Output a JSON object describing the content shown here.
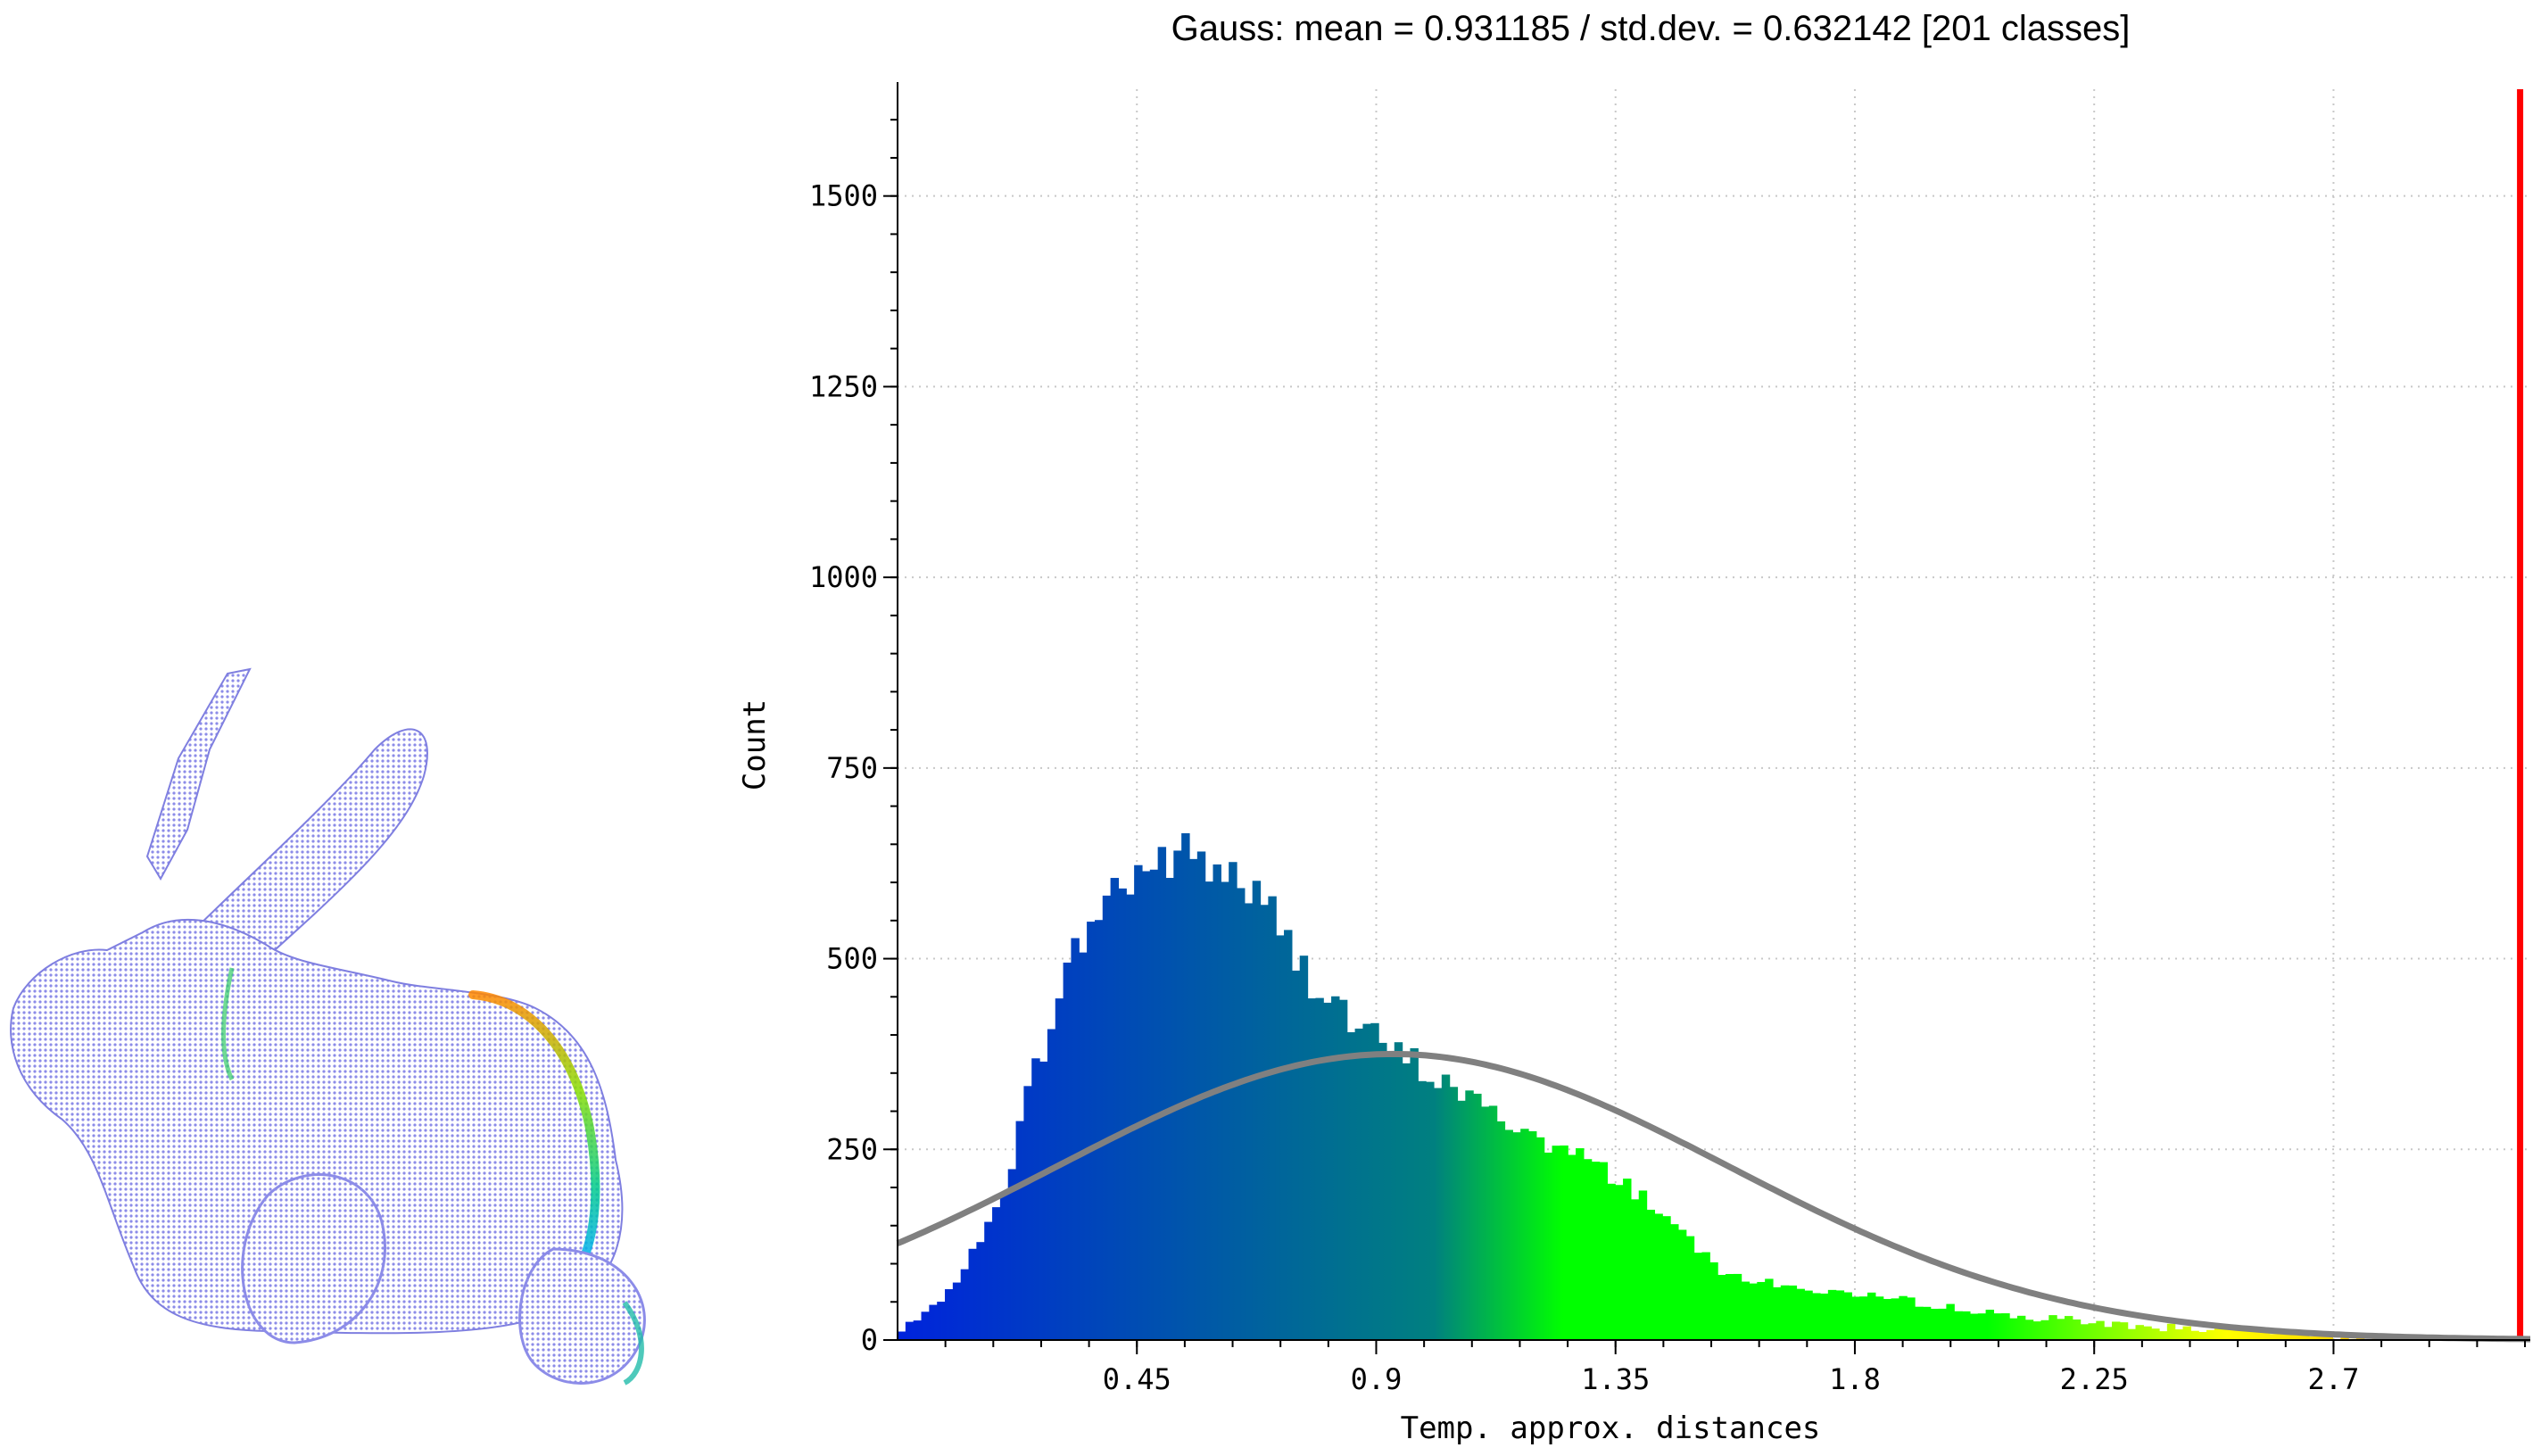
{
  "chart_data": {
    "type": "bar",
    "title": "Gauss: mean = 0.931185 / std.dev. = 0.632142 [201 classes]",
    "xlabel": "Temp. approx. distances",
    "ylabel": "Count",
    "xlim": [
      0.0,
      3.07
    ],
    "ylim": [
      0,
      1640
    ],
    "x_ticks": [
      "0.45",
      "0.9",
      "1.35",
      "1.8",
      "2.25",
      "2.7"
    ],
    "y_ticks": [
      "0",
      "250",
      "500",
      "750",
      "1000",
      "1250",
      "1500"
    ],
    "grid": true,
    "gauss": {
      "mean": 0.931185,
      "std": 0.632142,
      "peak": 375,
      "color": "#808080"
    },
    "histogram": {
      "bin_count": 201,
      "profile_x": [
        0.0,
        0.05,
        0.1,
        0.15,
        0.2,
        0.25,
        0.3,
        0.35,
        0.4,
        0.45,
        0.5,
        0.55,
        0.6,
        0.65,
        0.7,
        0.75,
        0.8,
        0.85,
        0.9,
        0.95,
        1.0,
        1.05,
        1.1,
        1.15,
        1.2,
        1.25,
        1.3,
        1.35,
        1.4,
        1.45,
        1.5,
        1.55,
        1.6,
        1.65,
        1.7,
        1.75,
        1.8,
        1.9,
        2.0,
        2.1,
        2.2,
        2.3,
        2.4,
        2.5,
        2.6,
        2.7,
        2.8,
        2.9,
        3.07
      ],
      "profile_y": [
        10,
        30,
        70,
        120,
        200,
        330,
        450,
        530,
        585,
        615,
        630,
        635,
        620,
        600,
        560,
        500,
        460,
        420,
        390,
        370,
        350,
        330,
        305,
        285,
        265,
        250,
        235,
        215,
        190,
        160,
        125,
        95,
        80,
        72,
        68,
        65,
        58,
        50,
        40,
        32,
        26,
        20,
        16,
        14,
        10,
        6,
        3,
        2,
        0
      ]
    },
    "outlier_bar": {
      "x": 3.05,
      "value": 1640,
      "color": "#ff0000"
    }
  }
}
